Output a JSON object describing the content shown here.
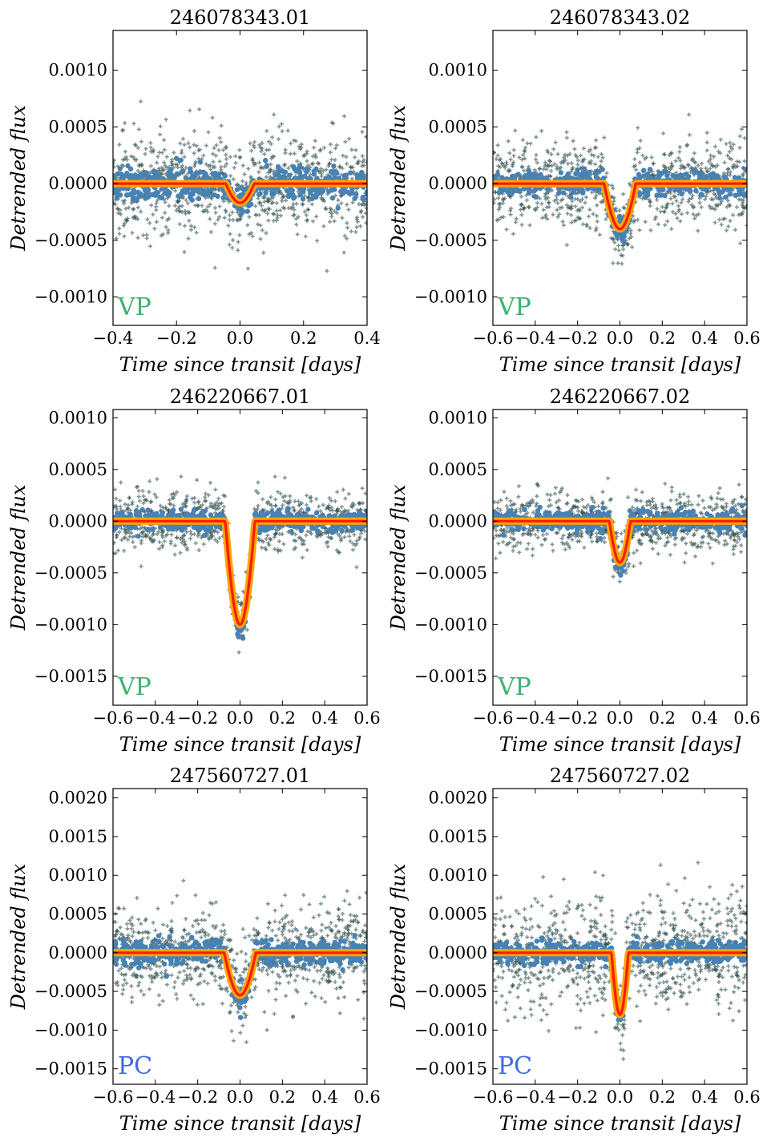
{
  "colors": {
    "scatter_raw": "#2f4f4f",
    "scatter_binned": "#4682b4",
    "model_band": "#ffa500",
    "model_line": "#ff1a00",
    "badge_VP": "#3cb371",
    "badge_PC": "#4169e1"
  },
  "chart_data": [
    {
      "type": "scatter",
      "title": "246078343.01",
      "xlabel": "Time since transit [days]",
      "ylabel": "Detrended flux",
      "xlim": [
        -0.4,
        0.4
      ],
      "ylim": [
        -0.00125,
        0.00135
      ],
      "xticks": [
        -0.4,
        -0.2,
        0.0,
        0.2,
        0.4
      ],
      "xtick_labels": [
        "−0.4",
        "−0.2",
        "0.0",
        "0.2",
        "0.4"
      ],
      "yticks": [
        0.001,
        0.0005,
        0.0,
        -0.0005,
        -0.001
      ],
      "ytick_labels": [
        "0.0010",
        "0.0005",
        "0.0000",
        "−0.0005",
        "−0.0010"
      ],
      "disposition": "VP",
      "transit_model": {
        "depth": 0.00017,
        "duration": 0.09
      },
      "noise": {
        "raw_sigma": 0.00022,
        "binned_sigma": 7e-05
      },
      "grid": false
    },
    {
      "type": "scatter",
      "title": "246078343.02",
      "xlabel": "Time since transit [days]",
      "ylabel": "Detrended flux",
      "xlim": [
        -0.6,
        0.6
      ],
      "ylim": [
        -0.00125,
        0.00135
      ],
      "xticks": [
        -0.6,
        -0.4,
        -0.2,
        0.0,
        0.2,
        0.4,
        0.6
      ],
      "xtick_labels": [
        "−0.6",
        "−0.4",
        "−0.2",
        "0.0",
        "0.2",
        "0.4",
        "0.6"
      ],
      "yticks": [
        0.001,
        0.0005,
        0.0,
        -0.0005,
        -0.001
      ],
      "ytick_labels": [
        "0.0010",
        "0.0005",
        "0.0000",
        "−0.0005",
        "−0.0010"
      ],
      "disposition": "VP",
      "transit_model": {
        "depth": 0.0004,
        "duration": 0.15
      },
      "noise": {
        "raw_sigma": 0.00018,
        "binned_sigma": 5e-05
      },
      "grid": false
    },
    {
      "type": "scatter",
      "title": "246220667.01",
      "xlabel": "Time since transit [days]",
      "ylabel": "Detrended flux",
      "xlim": [
        -0.6,
        0.6
      ],
      "ylim": [
        -0.00178,
        0.00108
      ],
      "xticks": [
        -0.6,
        -0.4,
        -0.2,
        0.0,
        0.2,
        0.4,
        0.6
      ],
      "xtick_labels": [
        "−0.6",
        "−0.4",
        "−0.2",
        "0.0",
        "0.2",
        "0.4",
        "0.6"
      ],
      "yticks": [
        0.001,
        0.0005,
        0.0,
        -0.0005,
        -0.001,
        -0.0015
      ],
      "ytick_labels": [
        "0.0010",
        "0.0005",
        "0.0000",
        "−0.0005",
        "−0.0010",
        "−0.0015"
      ],
      "disposition": "VP",
      "transit_model": {
        "depth": 0.001,
        "duration": 0.14
      },
      "noise": {
        "raw_sigma": 0.00014,
        "binned_sigma": 5e-05
      },
      "grid": false
    },
    {
      "type": "scatter",
      "title": "246220667.02",
      "xlabel": "Time since transit [days]",
      "ylabel": "Detrended flux",
      "xlim": [
        -0.6,
        0.6
      ],
      "ylim": [
        -0.00178,
        0.00108
      ],
      "xticks": [
        -0.6,
        -0.4,
        -0.2,
        0.0,
        0.2,
        0.4,
        0.6
      ],
      "xtick_labels": [
        "−0.6",
        "−0.4",
        "−0.2",
        "0.0",
        "0.2",
        "0.4",
        "0.6"
      ],
      "yticks": [
        0.001,
        0.0005,
        0.0,
        -0.0005,
        -0.001,
        -0.0015
      ],
      "ytick_labels": [
        "0.0010",
        "0.0005",
        "0.0000",
        "−0.0005",
        "−0.0010",
        "−0.0015"
      ],
      "disposition": "VP",
      "transit_model": {
        "depth": 0.0004,
        "duration": 0.1
      },
      "noise": {
        "raw_sigma": 0.00014,
        "binned_sigma": 5e-05
      },
      "grid": false
    },
    {
      "type": "scatter",
      "title": "247560727.01",
      "xlabel": "Time since transit [days]",
      "ylabel": "Detrended flux",
      "xlim": [
        -0.6,
        0.6
      ],
      "ylim": [
        -0.0017,
        0.00212
      ],
      "xticks": [
        -0.6,
        -0.4,
        -0.2,
        0.0,
        0.2,
        0.4,
        0.6
      ],
      "xtick_labels": [
        "−0.6",
        "−0.4",
        "−0.2",
        "0.0",
        "0.2",
        "0.4",
        "0.6"
      ],
      "yticks": [
        0.002,
        0.0015,
        0.001,
        0.0005,
        0.0,
        -0.0005,
        -0.001,
        -0.0015
      ],
      "ytick_labels": [
        "0.0020",
        "0.0015",
        "0.0010",
        "0.0005",
        "0.0000",
        "−0.0005",
        "−0.0010",
        "−0.0015"
      ],
      "disposition": "PC",
      "transit_model": {
        "depth": 0.00055,
        "duration": 0.15
      },
      "noise": {
        "raw_sigma": 0.0003,
        "binned_sigma": 8e-05
      },
      "grid": false
    },
    {
      "type": "scatter",
      "title": "247560727.02",
      "xlabel": "Time since transit [days]",
      "ylabel": "Detrended flux",
      "xlim": [
        -0.6,
        0.6
      ],
      "ylim": [
        -0.0017,
        0.00212
      ],
      "xticks": [
        -0.6,
        -0.4,
        -0.2,
        0.0,
        0.2,
        0.4,
        0.6
      ],
      "xtick_labels": [
        "−0.6",
        "−0.4",
        "−0.2",
        "0.0",
        "0.2",
        "0.4",
        "0.6"
      ],
      "yticks": [
        0.002,
        0.0015,
        0.001,
        0.0005,
        0.0,
        -0.0005,
        -0.001,
        -0.0015
      ],
      "ytick_labels": [
        "0.0020",
        "0.0015",
        "0.0010",
        "0.0005",
        "0.0000",
        "−0.0005",
        "−0.0010",
        "−0.0015"
      ],
      "disposition": "PC",
      "transit_model": {
        "depth": 0.0008,
        "duration": 0.08
      },
      "noise": {
        "raw_sigma": 0.00038,
        "binned_sigma": 7e-05
      },
      "grid": false
    }
  ]
}
